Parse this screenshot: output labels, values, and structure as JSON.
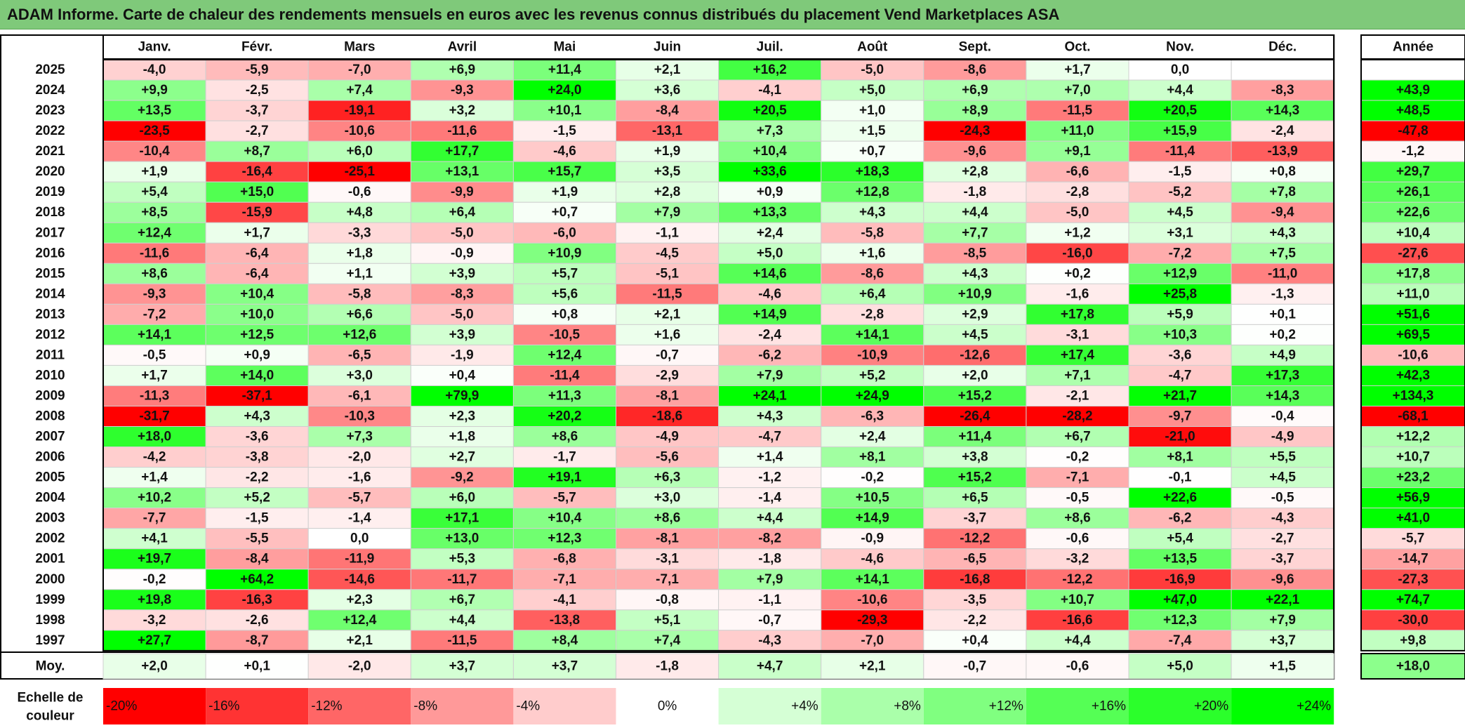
{
  "title": "ADAM Informe. Carte de chaleur des rendements mensuels en euros avec les revenus connus distribués du placement Vend Marketplaces ASA",
  "chart_data": {
    "type": "heatmap",
    "months": [
      "Janv.",
      "Févr.",
      "Mars",
      "Avril",
      "Mai",
      "Juin",
      "Juil.",
      "Août",
      "Sept.",
      "Oct.",
      "Nov.",
      "Déc."
    ],
    "year_header": "Année",
    "avg_label": "Moy.",
    "scale_label": "Echelle de couleur",
    "rows": [
      {
        "year": "2025",
        "months": [
          "-4,0",
          "-5,9",
          "-7,0",
          "+6,9",
          "+11,4",
          "+2,1",
          "+16,2",
          "-5,0",
          "-8,6",
          "+1,7",
          "0,0",
          ""
        ],
        "annual": ""
      },
      {
        "year": "2024",
        "months": [
          "+9,9",
          "-2,5",
          "+7,4",
          "-9,3",
          "+24,0",
          "+3,6",
          "-4,1",
          "+5,0",
          "+6,9",
          "+7,0",
          "+4,4",
          "-8,3"
        ],
        "annual": "+43,9"
      },
      {
        "year": "2023",
        "months": [
          "+13,5",
          "-3,7",
          "-19,1",
          "+3,2",
          "+10,1",
          "-8,4",
          "+20,5",
          "+1,0",
          "+8,9",
          "-11,5",
          "+20,5",
          "+14,3"
        ],
        "annual": "+48,5"
      },
      {
        "year": "2022",
        "months": [
          "-23,5",
          "-2,7",
          "-10,6",
          "-11,6",
          "-1,5",
          "-13,1",
          "+7,3",
          "+1,5",
          "-24,3",
          "+11,0",
          "+15,9",
          "-2,4"
        ],
        "annual": "-47,8"
      },
      {
        "year": "2021",
        "months": [
          "-10,4",
          "+8,7",
          "+6,0",
          "+17,7",
          "-4,6",
          "+1,9",
          "+10,4",
          "+0,7",
          "-9,6",
          "+9,1",
          "-11,4",
          "-13,9"
        ],
        "annual": "-1,2"
      },
      {
        "year": "2020",
        "months": [
          "+1,9",
          "-16,4",
          "-25,1",
          "+13,1",
          "+15,7",
          "+3,5",
          "+33,6",
          "+18,3",
          "+2,8",
          "-6,6",
          "-1,5",
          "+0,8"
        ],
        "annual": "+29,7"
      },
      {
        "year": "2019",
        "months": [
          "+5,4",
          "+15,0",
          "-0,6",
          "-9,9",
          "+1,9",
          "+2,8",
          "+0,9",
          "+12,8",
          "-1,8",
          "-2,8",
          "-5,2",
          "+7,8"
        ],
        "annual": "+26,1"
      },
      {
        "year": "2018",
        "months": [
          "+8,5",
          "-15,9",
          "+4,8",
          "+6,4",
          "+0,7",
          "+7,9",
          "+13,3",
          "+4,3",
          "+4,4",
          "-5,0",
          "+4,5",
          "-9,4"
        ],
        "annual": "+22,6"
      },
      {
        "year": "2017",
        "months": [
          "+12,4",
          "+1,7",
          "-3,3",
          "-5,0",
          "-6,0",
          "-1,1",
          "+2,4",
          "-5,8",
          "+7,7",
          "+1,2",
          "+3,1",
          "+4,3"
        ],
        "annual": "+10,4"
      },
      {
        "year": "2016",
        "months": [
          "-11,6",
          "-6,4",
          "+1,8",
          "-0,9",
          "+10,9",
          "-4,5",
          "+5,0",
          "+1,6",
          "-8,5",
          "-16,0",
          "-7,2",
          "+7,5"
        ],
        "annual": "-27,6"
      },
      {
        "year": "2015",
        "months": [
          "+8,6",
          "-6,4",
          "+1,1",
          "+3,9",
          "+5,7",
          "-5,1",
          "+14,6",
          "-8,6",
          "+4,3",
          "+0,2",
          "+12,9",
          "-11,0"
        ],
        "annual": "+17,8"
      },
      {
        "year": "2014",
        "months": [
          "-9,3",
          "+10,4",
          "-5,8",
          "-8,3",
          "+5,6",
          "-11,5",
          "-4,6",
          "+6,4",
          "+10,9",
          "-1,6",
          "+25,8",
          "-1,3"
        ],
        "annual": "+11,0"
      },
      {
        "year": "2013",
        "months": [
          "-7,2",
          "+10,0",
          "+6,6",
          "-5,0",
          "+0,8",
          "+2,1",
          "+14,9",
          "-2,8",
          "+2,9",
          "+17,8",
          "+5,9",
          "+0,1"
        ],
        "annual": "+51,6"
      },
      {
        "year": "2012",
        "months": [
          "+14,1",
          "+12,5",
          "+12,6",
          "+3,9",
          "-10,5",
          "+1,6",
          "-2,4",
          "+14,1",
          "+4,5",
          "-3,1",
          "+10,3",
          "+0,2"
        ],
        "annual": "+69,5"
      },
      {
        "year": "2011",
        "months": [
          "-0,5",
          "+0,9",
          "-6,5",
          "-1,9",
          "+12,4",
          "-0,7",
          "-6,2",
          "-10,9",
          "-12,6",
          "+17,4",
          "-3,6",
          "+4,9"
        ],
        "annual": "-10,6"
      },
      {
        "year": "2010",
        "months": [
          "+1,7",
          "+14,0",
          "+3,0",
          "+0,4",
          "-11,4",
          "-2,9",
          "+7,9",
          "+5,2",
          "+2,0",
          "+7,1",
          "-4,7",
          "+17,3"
        ],
        "annual": "+42,3"
      },
      {
        "year": "2009",
        "months": [
          "-11,3",
          "-37,1",
          "-6,1",
          "+79,9",
          "+11,3",
          "-8,1",
          "+24,1",
          "+24,9",
          "+15,2",
          "-2,1",
          "+21,7",
          "+14,3"
        ],
        "annual": "+134,3"
      },
      {
        "year": "2008",
        "months": [
          "-31,7",
          "+4,3",
          "-10,3",
          "+2,3",
          "+20,2",
          "-18,6",
          "+4,3",
          "-6,3",
          "-26,4",
          "-28,2",
          "-9,7",
          "-0,4"
        ],
        "annual": "-68,1"
      },
      {
        "year": "2007",
        "months": [
          "+18,0",
          "-3,6",
          "+7,3",
          "+1,8",
          "+8,6",
          "-4,9",
          "-4,7",
          "+2,4",
          "+11,4",
          "+6,7",
          "-21,0",
          "-4,9"
        ],
        "annual": "+12,2"
      },
      {
        "year": "2006",
        "months": [
          "-4,2",
          "-3,8",
          "-2,0",
          "+2,7",
          "-1,7",
          "-5,6",
          "+1,4",
          "+8,1",
          "+3,8",
          "-0,2",
          "+8,1",
          "+5,5"
        ],
        "annual": "+10,7"
      },
      {
        "year": "2005",
        "months": [
          "+1,4",
          "-2,2",
          "-1,6",
          "-9,2",
          "+19,1",
          "+6,3",
          "-1,2",
          "-0,2",
          "+15,2",
          "-7,1",
          "-0,1",
          "+4,5"
        ],
        "annual": "+23,2"
      },
      {
        "year": "2004",
        "months": [
          "+10,2",
          "+5,2",
          "-5,7",
          "+6,0",
          "-5,7",
          "+3,0",
          "-1,4",
          "+10,5",
          "+6,5",
          "-0,5",
          "+22,6",
          "-0,5"
        ],
        "annual": "+56,9"
      },
      {
        "year": "2003",
        "months": [
          "-7,7",
          "-1,5",
          "-1,4",
          "+17,1",
          "+10,4",
          "+8,6",
          "+4,4",
          "+14,9",
          "-3,7",
          "+8,6",
          "-6,2",
          "-4,3"
        ],
        "annual": "+41,0"
      },
      {
        "year": "2002",
        "months": [
          "+4,1",
          "-5,5",
          "0,0",
          "+13,0",
          "+12,3",
          "-8,1",
          "-8,2",
          "-0,9",
          "-12,2",
          "-0,6",
          "+5,4",
          "-2,7"
        ],
        "annual": "-5,7"
      },
      {
        "year": "2001",
        "months": [
          "+19,7",
          "-8,4",
          "-11,9",
          "+5,3",
          "-6,8",
          "-3,1",
          "-1,8",
          "-4,6",
          "-6,5",
          "-3,2",
          "+13,5",
          "-3,7"
        ],
        "annual": "-14,7"
      },
      {
        "year": "2000",
        "months": [
          "-0,2",
          "+64,2",
          "-14,6",
          "-11,7",
          "-7,1",
          "-7,1",
          "+7,9",
          "+14,1",
          "-16,8",
          "-12,2",
          "-16,9",
          "-9,6"
        ],
        "annual": "-27,3"
      },
      {
        "year": "1999",
        "months": [
          "+19,8",
          "-16,3",
          "+2,3",
          "+6,7",
          "-4,1",
          "-0,8",
          "-1,1",
          "-10,6",
          "-3,5",
          "+10,7",
          "+47,0",
          "+22,1"
        ],
        "annual": "+74,7"
      },
      {
        "year": "1998",
        "months": [
          "-3,2",
          "-2,6",
          "+12,4",
          "+4,4",
          "-13,8",
          "+5,1",
          "-0,7",
          "-29,3",
          "-2,2",
          "-16,6",
          "+12,3",
          "+7,9"
        ],
        "annual": "-30,0"
      },
      {
        "year": "1997",
        "months": [
          "+27,7",
          "-8,7",
          "+2,1",
          "-11,5",
          "+8,4",
          "+7,4",
          "-4,3",
          "-7,0",
          "+0,4",
          "+4,4",
          "-7,4",
          "+3,7"
        ],
        "annual": "+9,8"
      }
    ],
    "averages": [
      "+2,0",
      "+0,1",
      "-2,0",
      "+3,7",
      "+3,7",
      "-1,8",
      "+4,7",
      "+2,1",
      "-0,7",
      "-0,6",
      "+5,0",
      "+1,5"
    ],
    "average_annual": "+18,0",
    "scale": [
      "-20%",
      "-16%",
      "-12%",
      "-8%",
      "-4%",
      "0%",
      "+4%",
      "+8%",
      "+12%",
      "+16%",
      "+20%",
      "+24%"
    ],
    "colors": {
      "title_bg": "#7fc97a",
      "neg_max": "#ff0000",
      "pos_max": "#00ff00",
      "neutral": "#ffffff",
      "grid": "#cfcfcf",
      "border": "#000000"
    }
  }
}
